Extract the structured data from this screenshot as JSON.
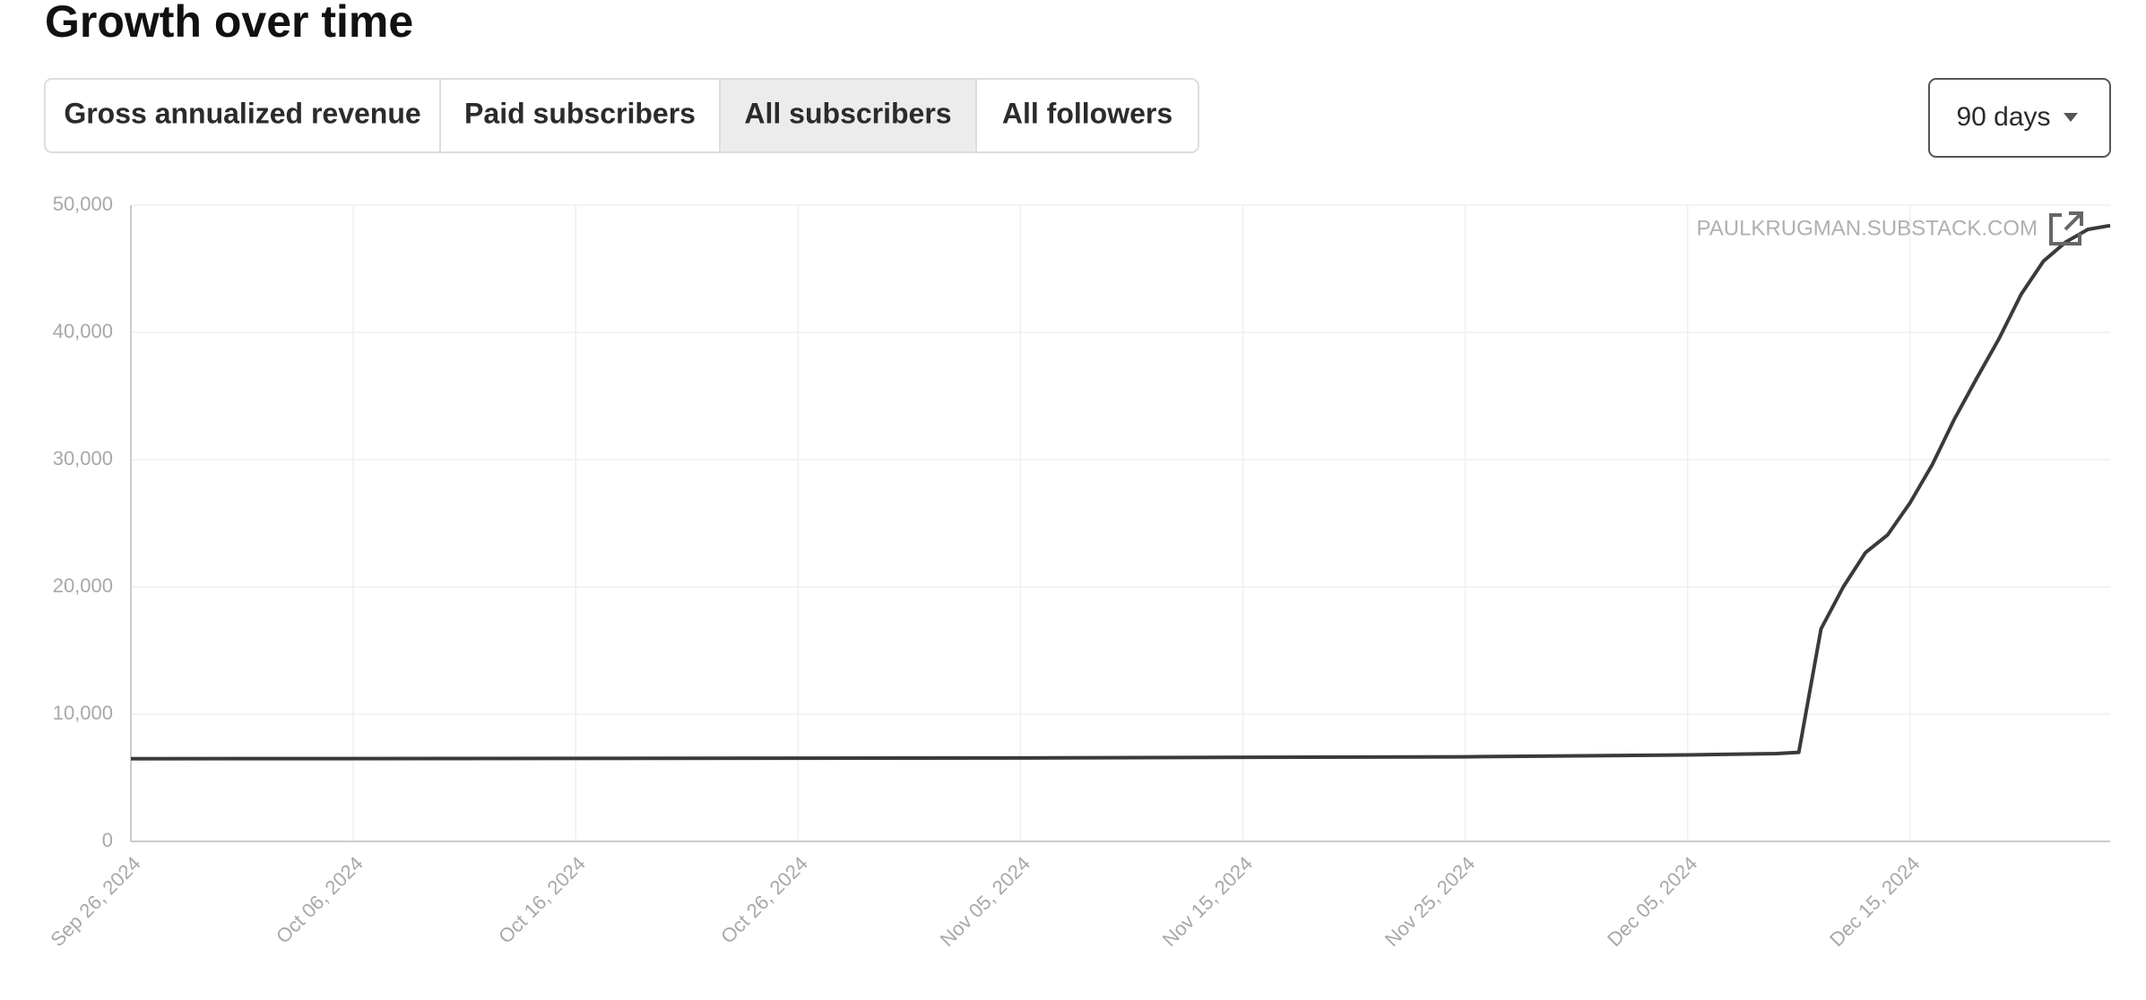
{
  "header": {
    "title": "Growth over time"
  },
  "tabs": {
    "items": [
      "Gross annualized revenue",
      "Paid subscribers",
      "All subscribers",
      "All followers"
    ],
    "selected": 2
  },
  "range_dropdown": "90 days",
  "chart_data": {
    "type": "line",
    "watermark": "PAULKRUGMAN.SUBSTACK.COM",
    "x": [
      "2024-09-26",
      "2024-10-16",
      "2024-11-05",
      "2024-11-25",
      "2024-12-05",
      "2024-12-09",
      "2024-12-10",
      "2024-12-11",
      "2024-12-12",
      "2024-12-13",
      "2024-12-14",
      "2024-12-15",
      "2024-12-16",
      "2024-12-17",
      "2024-12-18",
      "2024-12-19",
      "2024-12-20",
      "2024-12-21",
      "2024-12-22",
      "2024-12-23",
      "2024-12-24"
    ],
    "series": [
      {
        "name": "All subscribers",
        "color": "#3a3a3a",
        "values": [
          6500,
          6520,
          6560,
          6650,
          6800,
          6900,
          7000,
          16700,
          20000,
          22700,
          24100,
          26600,
          29600,
          33200,
          36400,
          39500,
          43000,
          45600,
          47100,
          48100,
          48400
        ]
      }
    ],
    "xlim": [
      "2024-09-26",
      "2024-12-24"
    ],
    "xticks": [
      {
        "value": "2024-09-26",
        "label": "Sep 26, 2024"
      },
      {
        "value": "2024-10-06",
        "label": "Oct 06, 2024"
      },
      {
        "value": "2024-10-16",
        "label": "Oct 16, 2024"
      },
      {
        "value": "2024-10-26",
        "label": "Oct 26, 2024"
      },
      {
        "value": "2024-11-05",
        "label": "Nov 05, 2024"
      },
      {
        "value": "2024-11-15",
        "label": "Nov 15, 2024"
      },
      {
        "value": "2024-11-25",
        "label": "Nov 25, 2024"
      },
      {
        "value": "2024-12-05",
        "label": "Dec 05, 2024"
      },
      {
        "value": "2024-12-15",
        "label": "Dec 15, 2024"
      }
    ],
    "ylim": [
      0,
      50000
    ],
    "yticks": [
      0,
      {
        "value": 10000,
        "label": "10,000"
      },
      {
        "value": 20000,
        "label": "20,000"
      },
      {
        "value": 30000,
        "label": "30,000"
      },
      {
        "value": 40000,
        "label": "40,000"
      },
      {
        "value": 50000,
        "label": "50,000"
      }
    ],
    "grid": true
  }
}
